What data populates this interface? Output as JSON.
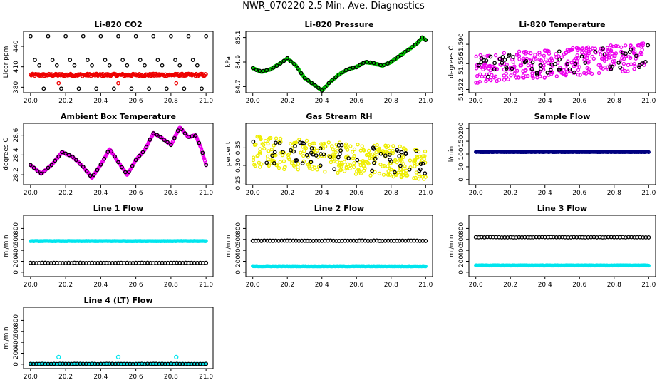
{
  "title": "NWR_070220  2.5 Min. Ave. Diagnostics",
  "colors": {
    "black": "#000000",
    "red": "#ee0000",
    "green": "#00cc00",
    "magenta": "#ee00ee",
    "yellow": "#eeee00",
    "navy": "#000080",
    "cyan": "#00e5ee"
  },
  "chart_data": [
    {
      "id": "co2",
      "type": "scatter",
      "title": "Li-820 CO2",
      "ylabel": "Licor ppm",
      "xlim": [
        20.0,
        21.0
      ],
      "ylim": [
        372,
        462
      ],
      "xticks": [
        "20.0",
        "20.2",
        "20.4",
        "20.6",
        "20.8",
        "21.0"
      ],
      "yticks": [
        380,
        410,
        440
      ],
      "series": [
        {
          "name": "black",
          "color": "black",
          "levels": [
            455,
            420,
            412,
            378
          ]
        },
        {
          "name": "red",
          "color": "red",
          "value": 398
        },
        {
          "name": "red outliers",
          "color": "red",
          "points": [
            [
              20.16,
              386
            ],
            [
              20.5,
              386
            ],
            [
              20.83,
              386
            ]
          ]
        }
      ]
    },
    {
      "id": "pressure",
      "type": "scatter",
      "title": "Li-820 Pressure",
      "ylabel": "kPa",
      "xlim": [
        20.0,
        21.0
      ],
      "ylim": [
        84.65,
        85.15
      ],
      "xticks": [
        "20.0",
        "20.2",
        "20.4",
        "20.6",
        "20.8",
        "21.0"
      ],
      "yticks": [
        84.7,
        84.9,
        85.1
      ],
      "curve": [
        [
          20.0,
          84.85
        ],
        [
          20.05,
          84.82
        ],
        [
          20.1,
          84.84
        ],
        [
          20.15,
          84.88
        ],
        [
          20.2,
          84.93
        ],
        [
          20.25,
          84.87
        ],
        [
          20.3,
          84.77
        ],
        [
          20.35,
          84.72
        ],
        [
          20.4,
          84.67
        ],
        [
          20.45,
          84.74
        ],
        [
          20.5,
          84.8
        ],
        [
          20.55,
          84.84
        ],
        [
          20.6,
          84.86
        ],
        [
          20.65,
          84.9
        ],
        [
          20.7,
          84.89
        ],
        [
          20.75,
          84.87
        ],
        [
          20.8,
          84.9
        ],
        [
          20.85,
          84.95
        ],
        [
          20.9,
          85.0
        ],
        [
          20.95,
          85.05
        ],
        [
          20.98,
          85.1
        ],
        [
          21.0,
          85.08
        ]
      ],
      "series": [
        {
          "name": "green",
          "color": "green"
        },
        {
          "name": "black",
          "color": "black"
        }
      ]
    },
    {
      "id": "temperature",
      "type": "scatter",
      "title": "Li-820 Temperature",
      "ylabel": "degrees C",
      "xlim": [
        20.0,
        21.0
      ],
      "ylim": [
        51.515,
        51.61
      ],
      "xticks": [
        "20.0",
        "20.2",
        "20.4",
        "20.6",
        "20.8",
        "21.0"
      ],
      "yticks": [
        51.52,
        51.56,
        51.59
      ],
      "ytick_labels": [
        "51.522",
        "51.556",
        "51.590"
      ],
      "trend": [
        [
          20.0,
          51.552
        ],
        [
          21.0,
          51.572
        ]
      ],
      "spread": 0.022,
      "series": [
        {
          "name": "magenta",
          "color": "magenta"
        },
        {
          "name": "black",
          "color": "black"
        }
      ]
    },
    {
      "id": "ambient",
      "type": "scatter",
      "title": "Ambient Box Temperature",
      "ylabel": "degrees C",
      "xlim": [
        20.0,
        21.0
      ],
      "ylim": [
        28.1,
        28.72
      ],
      "xticks": [
        "20.0",
        "20.2",
        "20.4",
        "20.6",
        "20.8",
        "21.0"
      ],
      "yticks": [
        28.2,
        28.4,
        28.6
      ],
      "curve": [
        [
          20.0,
          28.3
        ],
        [
          20.06,
          28.21
        ],
        [
          20.12,
          28.3
        ],
        [
          20.18,
          28.43
        ],
        [
          20.24,
          28.38
        ],
        [
          20.3,
          28.28
        ],
        [
          20.35,
          28.17
        ],
        [
          20.4,
          28.3
        ],
        [
          20.45,
          28.46
        ],
        [
          20.5,
          28.33
        ],
        [
          20.55,
          28.2
        ],
        [
          20.6,
          28.35
        ],
        [
          20.65,
          28.45
        ],
        [
          20.7,
          28.62
        ],
        [
          20.75,
          28.57
        ],
        [
          20.8,
          28.5
        ],
        [
          20.85,
          28.68
        ],
        [
          20.9,
          28.58
        ],
        [
          20.94,
          28.6
        ],
        [
          20.97,
          28.48
        ],
        [
          21.0,
          28.3
        ]
      ],
      "series": [
        {
          "name": "magenta",
          "color": "magenta"
        },
        {
          "name": "black",
          "color": "black"
        }
      ]
    },
    {
      "id": "rh",
      "type": "scatter",
      "title": "Gas Stream RH",
      "ylabel": "percent",
      "xlim": [
        20.0,
        21.0
      ],
      "ylim": [
        0.245,
        0.42
      ],
      "xticks": [
        "20.0",
        "20.2",
        "20.4",
        "20.6",
        "20.8",
        "21.0"
      ],
      "yticks": [
        0.25,
        0.3,
        0.35
      ],
      "ytick_labels": [
        "0.25",
        "0.30",
        "0.35"
      ],
      "trend": [
        [
          20.0,
          0.34
        ],
        [
          21.0,
          0.305
        ]
      ],
      "spread": 0.045,
      "series": [
        {
          "name": "yellow",
          "color": "yellow"
        },
        {
          "name": "black",
          "color": "black"
        }
      ]
    },
    {
      "id": "sample",
      "type": "scatter",
      "title": "Sample Flow",
      "ylabel": "l/min",
      "xlim": [
        20.0,
        21.0
      ],
      "ylim": [
        -20,
        220
      ],
      "xticks": [
        "20.0",
        "20.2",
        "20.4",
        "20.6",
        "20.8",
        "21.0"
      ],
      "yticks": [
        0,
        50,
        100,
        150,
        200
      ],
      "series": [
        {
          "name": "navy",
          "color": "navy",
          "value": 108
        }
      ]
    },
    {
      "id": "line1",
      "type": "scatter",
      "title": "Line 1 Flow",
      "ylabel": "ml/min",
      "xlim": [
        20.0,
        21.0
      ],
      "ylim": [
        -80,
        1040
      ],
      "xticks": [
        "20.0",
        "20.2",
        "20.4",
        "20.6",
        "20.8",
        "21.0"
      ],
      "yticks": [
        0,
        200,
        400,
        600,
        800
      ],
      "series": [
        {
          "name": "cyan",
          "color": "cyan",
          "value": 570
        },
        {
          "name": "black",
          "color": "black",
          "value": 170
        }
      ]
    },
    {
      "id": "line2",
      "type": "scatter",
      "title": "Line 2 Flow",
      "ylabel": "ml/min",
      "xlim": [
        20.0,
        21.0
      ],
      "ylim": [
        -80,
        1040
      ],
      "xticks": [
        "20.0",
        "20.2",
        "20.4",
        "20.6",
        "20.8",
        "21.0"
      ],
      "yticks": [
        0,
        200,
        400,
        600,
        800
      ],
      "series": [
        {
          "name": "cyan",
          "color": "cyan",
          "value": 110
        },
        {
          "name": "black",
          "color": "black",
          "value": 575
        }
      ]
    },
    {
      "id": "line3",
      "type": "scatter",
      "title": "Line 3 Flow",
      "ylabel": "ml/min",
      "xlim": [
        20.0,
        21.0
      ],
      "ylim": [
        -80,
        1040
      ],
      "xticks": [
        "20.0",
        "20.2",
        "20.4",
        "20.6",
        "20.8",
        "21.0"
      ],
      "yticks": [
        0,
        200,
        400,
        600,
        800
      ],
      "series": [
        {
          "name": "cyan",
          "color": "cyan",
          "value": 125
        },
        {
          "name": "black",
          "color": "black",
          "value": 640
        }
      ]
    },
    {
      "id": "line4",
      "type": "scatter",
      "title": "Line 4 (LT) Flow",
      "ylabel": "ml/min",
      "xlim": [
        20.0,
        21.0
      ],
      "ylim": [
        -80,
        1040
      ],
      "xticks": [
        "20.0",
        "20.2",
        "20.4",
        "20.6",
        "20.8",
        "21.0"
      ],
      "yticks": [
        0,
        200,
        400,
        600,
        800
      ],
      "series": [
        {
          "name": "cyan",
          "color": "cyan",
          "value": 5,
          "spikes": [
            [
              20.16,
              130
            ],
            [
              20.5,
              130
            ],
            [
              20.83,
              130
            ]
          ]
        },
        {
          "name": "black",
          "color": "black",
          "value": 5
        }
      ]
    }
  ]
}
